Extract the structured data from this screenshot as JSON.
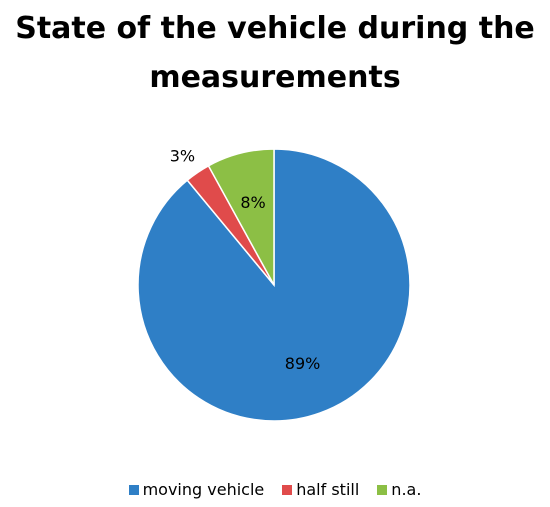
{
  "chart_data": {
    "type": "pie",
    "title": "State of the vehicle during the measurements",
    "categories": [
      "moving vehicle",
      "half still",
      "n.a."
    ],
    "values": [
      89,
      3,
      8
    ],
    "data_labels": [
      "89%",
      "3%",
      "8%"
    ],
    "colors": [
      "#2f7fc6",
      "#e04b4b",
      "#8cbf45"
    ],
    "start_angle": "12 o'clock",
    "direction": "clockwise",
    "legend_position": "bottom"
  }
}
